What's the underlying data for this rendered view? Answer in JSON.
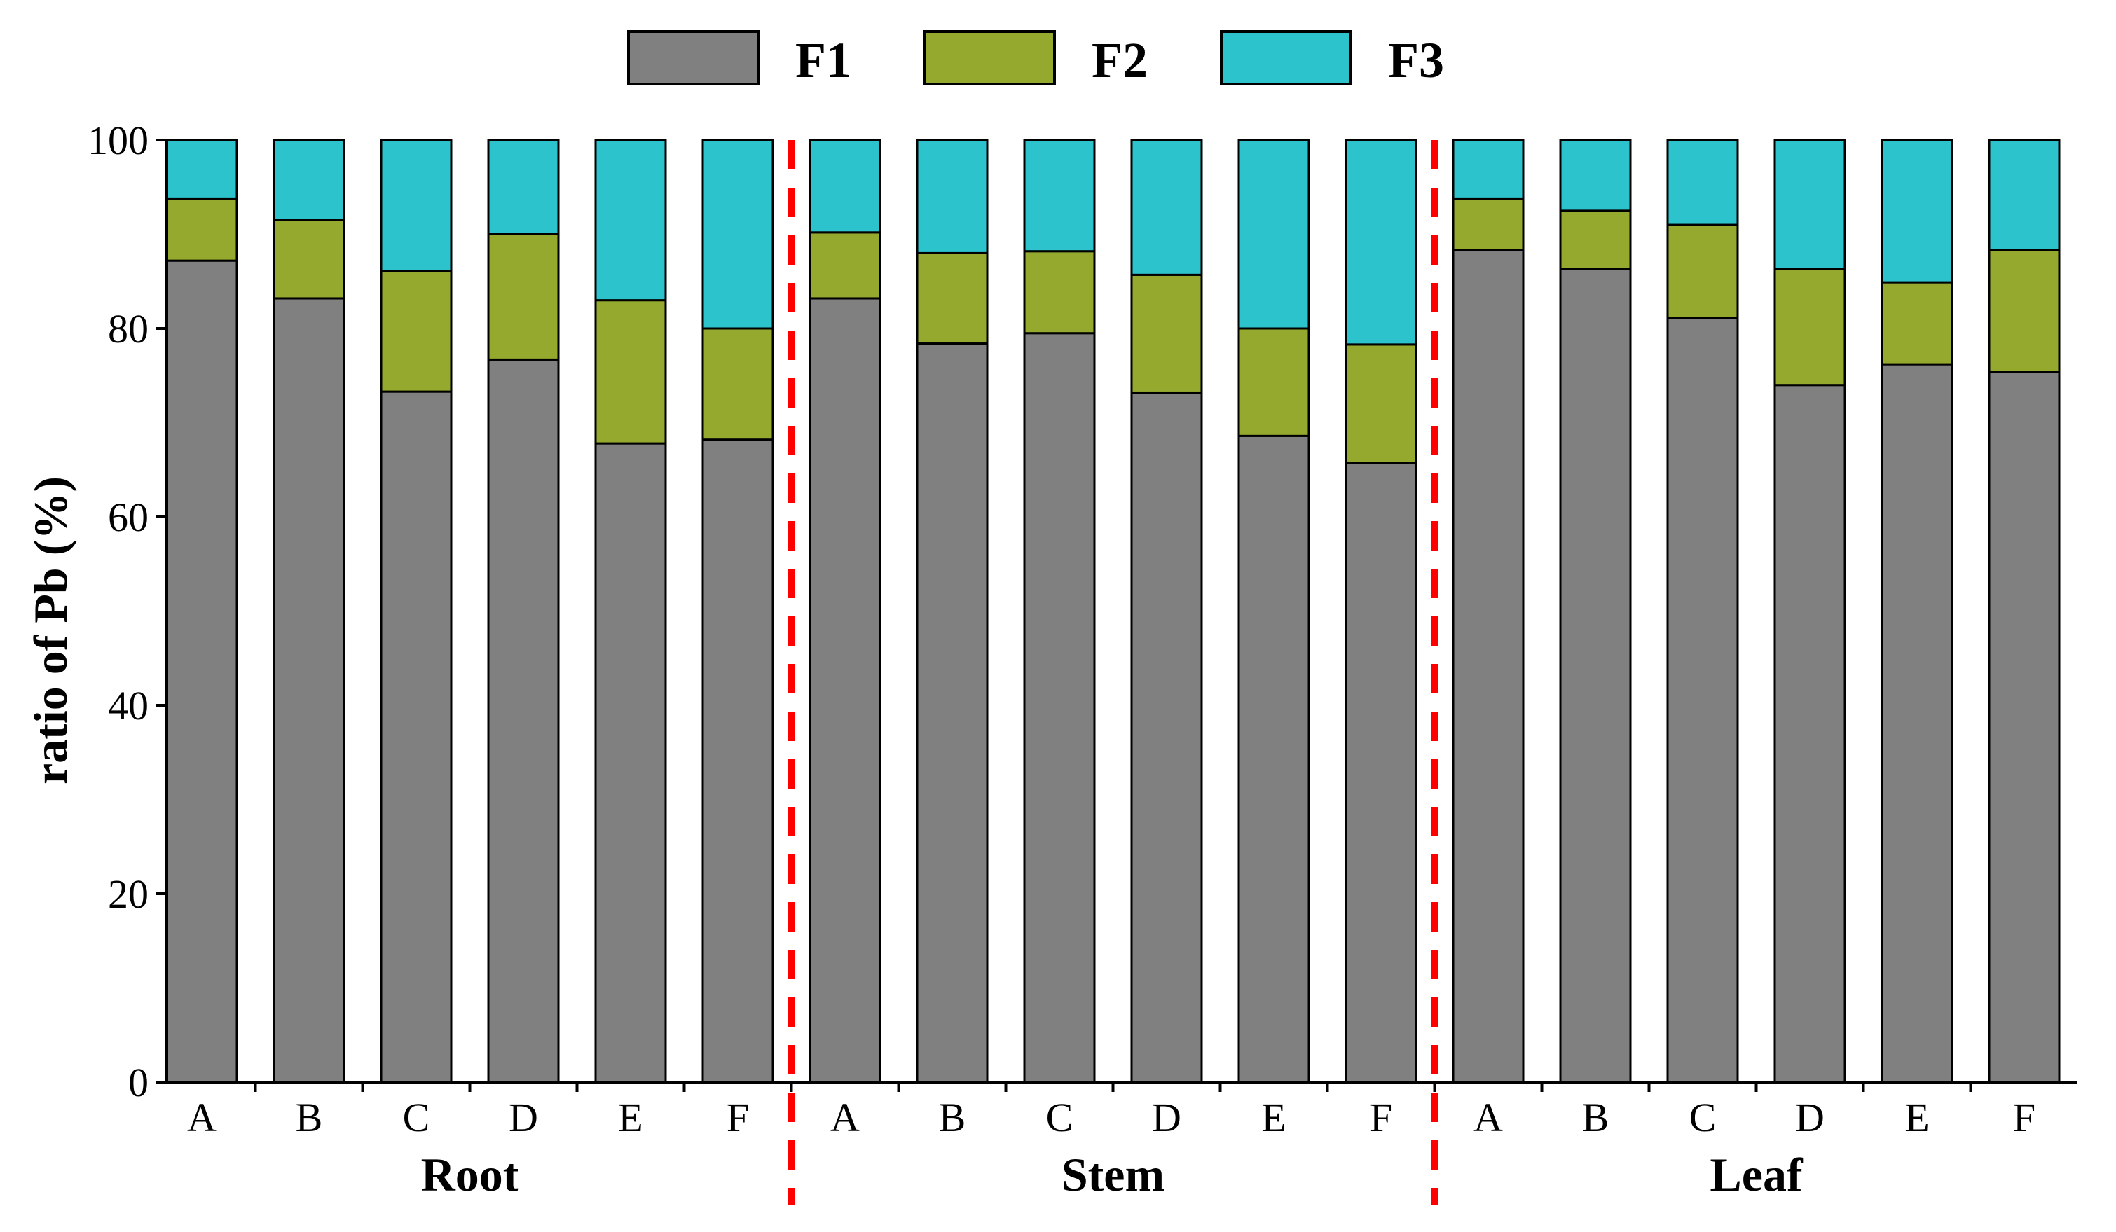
{
  "chart_data": {
    "type": "bar",
    "stacked": true,
    "title": "",
    "xlabel": "",
    "ylabel": "ratio of Pb (%)",
    "ylim": [
      0,
      100
    ],
    "yticks": [
      "0",
      "20",
      "40",
      "60",
      "80",
      "100"
    ],
    "yticks_values": [
      0,
      20,
      40,
      60,
      80,
      100
    ],
    "grid": false,
    "legend_position": "top-center",
    "categories": [
      "A",
      "B",
      "C",
      "D",
      "E",
      "F",
      "A",
      "B",
      "C",
      "D",
      "E",
      "F",
      "A",
      "B",
      "C",
      "D",
      "E",
      "F"
    ],
    "groups": [
      {
        "name": "Root",
        "start": 0,
        "count": 6
      },
      {
        "name": "Stem",
        "start": 6,
        "count": 6
      },
      {
        "name": "Leaf",
        "start": 12,
        "count": 6
      }
    ],
    "series": [
      {
        "name": "F1",
        "color": "#808080",
        "values": [
          87.2,
          83.2,
          73.3,
          76.7,
          67.8,
          68.2,
          83.2,
          78.4,
          79.5,
          73.2,
          68.6,
          65.7,
          88.3,
          86.3,
          81.1,
          74.0,
          76.2,
          75.4
        ]
      },
      {
        "name": "F2",
        "color": "#94a92e",
        "values": [
          6.6,
          8.3,
          12.8,
          13.3,
          15.2,
          11.8,
          7.0,
          9.6,
          8.7,
          12.5,
          11.4,
          12.6,
          5.5,
          6.2,
          9.9,
          12.3,
          8.7,
          12.9
        ]
      },
      {
        "name": "F3",
        "color": "#2dc3cc",
        "values": [
          6.2,
          8.5,
          13.9,
          10.0,
          17.0,
          20.0,
          9.8,
          12.0,
          11.8,
          14.3,
          20.0,
          21.7,
          6.2,
          7.5,
          9.0,
          13.7,
          15.1,
          11.7
        ]
      }
    ],
    "separator_color": "#ff0000"
  }
}
